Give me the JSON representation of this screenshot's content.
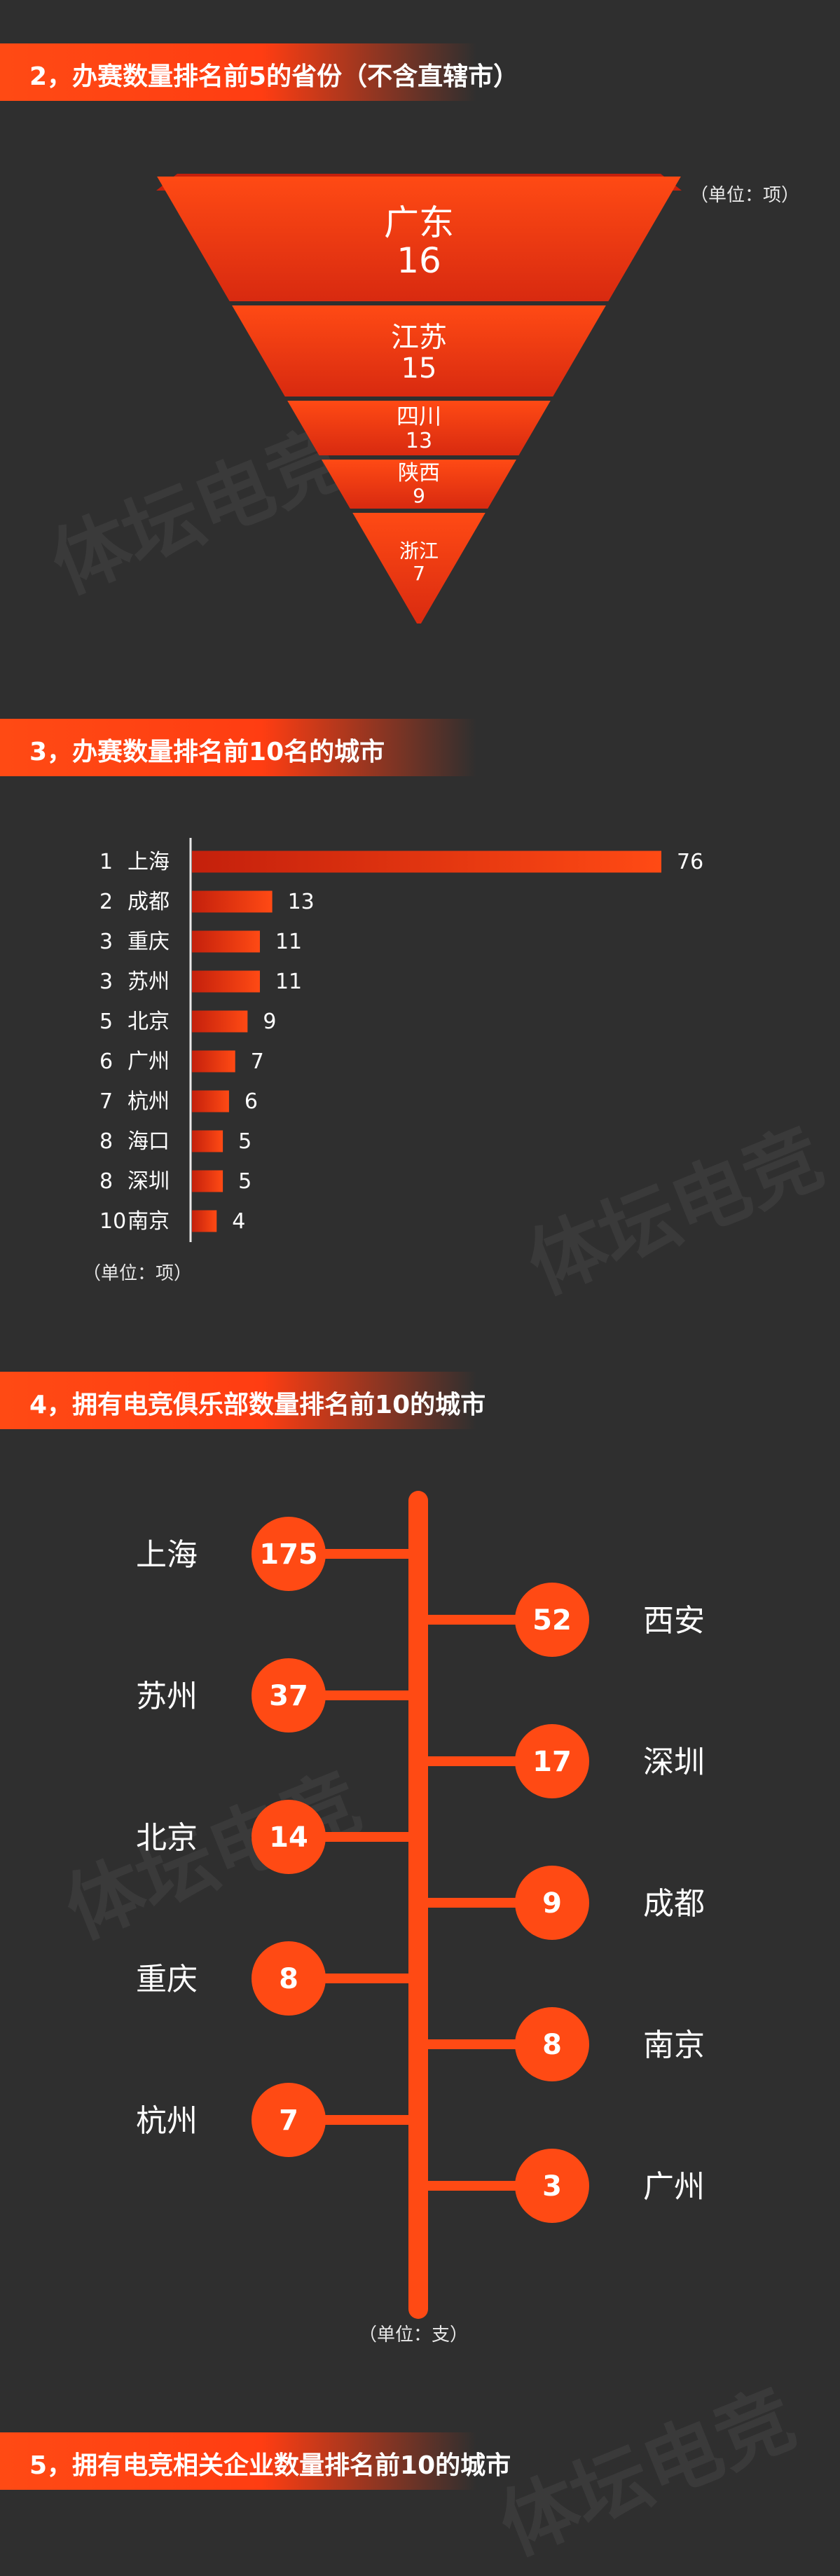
{
  "watermark_text": "体坛电竞",
  "section2": {
    "title": "2，办赛数量排名前5的省份（不含直辖市）",
    "unit": "（单位：项）",
    "chart_data": {
      "type": "funnel",
      "categories": [
        "广东",
        "江苏",
        "四川",
        "陕西",
        "浙江"
      ],
      "values": [
        16,
        15,
        13,
        9,
        7
      ],
      "colors": [
        "#ff4a14",
        "#d82a10"
      ]
    }
  },
  "section3": {
    "title": "3，办赛数量排名前10名的城市",
    "unit": "（单位：项）",
    "chart_data": {
      "type": "bar",
      "orientation": "horizontal",
      "ranks": [
        "1",
        "2",
        "3",
        "3",
        "5",
        "6",
        "7",
        "8",
        "8",
        "10"
      ],
      "categories": [
        "上海",
        "成都",
        "重庆",
        "苏州",
        "北京",
        "广州",
        "杭州",
        "海口",
        "深圳",
        "南京"
      ],
      "values": [
        76,
        13,
        11,
        11,
        9,
        7,
        6,
        5,
        5,
        4
      ],
      "xlim": [
        0,
        76
      ],
      "bar_color": "#ff4a14"
    }
  },
  "section4": {
    "title": "4，拥有电竞俱乐部数量排名前10的城市",
    "unit": "（单位：支）",
    "chart_data": {
      "type": "timeline",
      "left": [
        {
          "city": "上海",
          "value": 175
        },
        {
          "city": "苏州",
          "value": 37
        },
        {
          "city": "北京",
          "value": 14
        },
        {
          "city": "重庆",
          "value": 8
        },
        {
          "city": "杭州",
          "value": 7
        }
      ],
      "right": [
        {
          "city": "西安",
          "value": 52
        },
        {
          "city": "深圳",
          "value": 17
        },
        {
          "city": "成都",
          "value": 9
        },
        {
          "city": "南京",
          "value": 8
        },
        {
          "city": "广州",
          "value": 3
        }
      ],
      "color": "#ff4a14"
    }
  },
  "section5": {
    "title": "5，拥有电竞相关企业数量排名前10的城市"
  }
}
